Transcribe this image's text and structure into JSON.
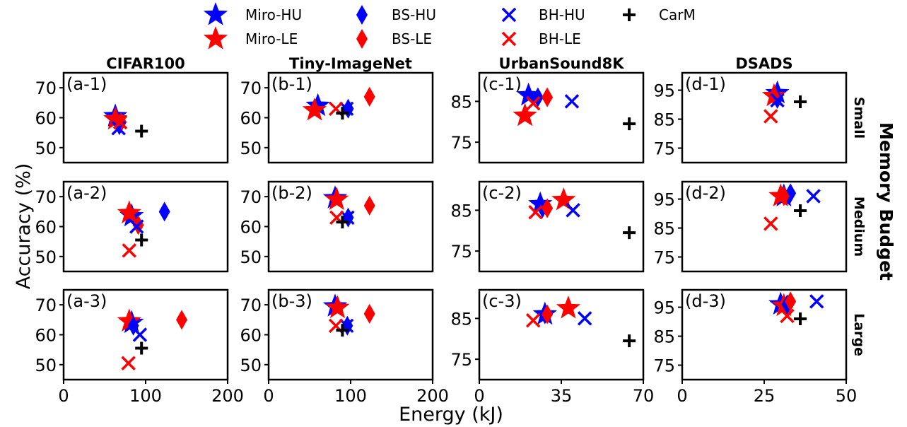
{
  "colors": {
    "HU": "#0000ff",
    "LE": "#ff0000",
    "CarM": "#000000"
  },
  "legend": [
    {
      "label": "Miro-HU",
      "marker": "star",
      "color": "#0000ff"
    },
    {
      "label": "Miro-LE",
      "marker": "star",
      "color": "#ff0000"
    },
    {
      "label": "BS-HU",
      "marker": "diamond",
      "color": "#0000ff"
    },
    {
      "label": "BS-LE",
      "marker": "diamond",
      "color": "#ff0000"
    },
    {
      "label": "BH-HU",
      "marker": "x",
      "color": "#0000ff"
    },
    {
      "label": "BH-LE",
      "marker": "x",
      "color": "#ff0000"
    },
    {
      "label": "CarM",
      "marker": "plus",
      "color": "#000000"
    }
  ],
  "column_titles": [
    "CIFAR100",
    "Tiny-ImageNet",
    "UrbanSound8K",
    "DSADS"
  ],
  "row_labels": [
    "Small",
    "Medium",
    "Large"
  ],
  "right_title": "Memory Budget",
  "xlabel": "Energy (kJ)",
  "ylabel": "Accuracy (%)",
  "chart_data": {
    "type": "scatter",
    "series_names": [
      "Miro-HU",
      "Miro-LE",
      "BS-HU",
      "BS-LE",
      "BH-HU",
      "BH-LE",
      "CarM"
    ],
    "columns": [
      {
        "dataset": "CIFAR100",
        "xlim": [
          0,
          200
        ],
        "xticks": [
          0,
          100,
          200
        ],
        "ylim": [
          45,
          75
        ],
        "yticks": [
          50,
          60,
          70
        ]
      },
      {
        "dataset": "Tiny-ImageNet",
        "xlim": [
          0,
          200
        ],
        "xticks": [
          0,
          100,
          200
        ],
        "ylim": [
          45,
          75
        ],
        "yticks": [
          50,
          60,
          70
        ]
      },
      {
        "dataset": "UrbanSound8K",
        "xlim": [
          0,
          70
        ],
        "xticks": [
          0,
          35,
          70
        ],
        "ylim": [
          70,
          92
        ],
        "yticks": [
          75,
          85
        ]
      },
      {
        "dataset": "DSADS",
        "xlim": [
          0,
          50
        ],
        "xticks": [
          0,
          25,
          50
        ],
        "ylim": [
          70,
          101
        ],
        "yticks": [
          75,
          85,
          95
        ]
      }
    ],
    "panels": [
      {
        "label": "(a-1)",
        "row": 0,
        "col": 0,
        "points": [
          {
            "series": "Miro-HU",
            "x": 63,
            "y": 60.5
          },
          {
            "series": "Miro-LE",
            "x": 63,
            "y": 59.5
          },
          {
            "series": "BS-HU",
            "x": 68,
            "y": 57.5
          },
          {
            "series": "BS-LE",
            "x": 70,
            "y": 58.5
          },
          {
            "series": "BH-HU",
            "x": 67,
            "y": 56.5
          },
          {
            "series": "BH-LE",
            "x": 69,
            "y": 58.5
          },
          {
            "series": "CarM",
            "x": 95,
            "y": 55.5
          }
        ]
      },
      {
        "label": "(b-1)",
        "row": 0,
        "col": 1,
        "points": [
          {
            "series": "Miro-HU",
            "x": 60,
            "y": 64
          },
          {
            "series": "Miro-LE",
            "x": 56,
            "y": 62.5
          },
          {
            "series": "BS-HU",
            "x": 97,
            "y": 63
          },
          {
            "series": "BS-LE",
            "x": 123,
            "y": 67
          },
          {
            "series": "BH-HU",
            "x": 95,
            "y": 63
          },
          {
            "series": "BH-LE",
            "x": 82,
            "y": 63
          },
          {
            "series": "CarM",
            "x": 90,
            "y": 61.5
          }
        ]
      },
      {
        "label": "(c-1)",
        "row": 0,
        "col": 2,
        "points": [
          {
            "series": "Miro-HU",
            "x": 21,
            "y": 86.5
          },
          {
            "series": "Miro-LE",
            "x": 19.5,
            "y": 81.5
          },
          {
            "series": "BS-HU",
            "x": 25,
            "y": 86
          },
          {
            "series": "BS-LE",
            "x": 29,
            "y": 86
          },
          {
            "series": "BH-HU",
            "x": 39.5,
            "y": 85
          },
          {
            "series": "BH-LE",
            "x": 23,
            "y": 84.5
          },
          {
            "series": "CarM",
            "x": 64,
            "y": 79.5
          }
        ]
      },
      {
        "label": "(d-1)",
        "row": 0,
        "col": 3,
        "points": [
          {
            "series": "Miro-HU",
            "x": 29,
            "y": 94
          },
          {
            "series": "Miro-LE",
            "x": 28,
            "y": 93
          },
          {
            "series": "BS-HU",
            "x": 29,
            "y": 92
          },
          {
            "series": "BS-LE",
            "x": 28,
            "y": 93
          },
          {
            "series": "BH-HU",
            "x": 29,
            "y": 91.5
          },
          {
            "series": "BH-LE",
            "x": 27,
            "y": 86
          },
          {
            "series": "CarM",
            "x": 36,
            "y": 91
          }
        ]
      },
      {
        "label": "(a-2)",
        "row": 1,
        "col": 0,
        "points": [
          {
            "series": "Miro-HU",
            "x": 83,
            "y": 63.5
          },
          {
            "series": "Miro-LE",
            "x": 80,
            "y": 64.5
          },
          {
            "series": "BS-HU",
            "x": 123,
            "y": 65
          },
          {
            "series": "BS-LE",
            "x": 91,
            "y": 60.5
          },
          {
            "series": "BH-HU",
            "x": 89,
            "y": 60
          },
          {
            "series": "BH-LE",
            "x": 80,
            "y": 52
          },
          {
            "series": "CarM",
            "x": 95,
            "y": 55.5
          }
        ]
      },
      {
        "label": "(b-2)",
        "row": 1,
        "col": 1,
        "points": [
          {
            "series": "Miro-HU",
            "x": 81,
            "y": 69.5
          },
          {
            "series": "Miro-LE",
            "x": 83,
            "y": 69
          },
          {
            "series": "BS-HU",
            "x": 97,
            "y": 63
          },
          {
            "series": "BS-LE",
            "x": 123,
            "y": 67
          },
          {
            "series": "BH-HU",
            "x": 96,
            "y": 63
          },
          {
            "series": "BH-LE",
            "x": 83,
            "y": 63
          },
          {
            "series": "CarM",
            "x": 90,
            "y": 61.5
          }
        ]
      },
      {
        "label": "(c-2)",
        "row": 1,
        "col": 2,
        "points": [
          {
            "series": "Miro-HU",
            "x": 26,
            "y": 86.5
          },
          {
            "series": "Miro-LE",
            "x": 36,
            "y": 87.5
          },
          {
            "series": "BS-HU",
            "x": 27,
            "y": 85.5
          },
          {
            "series": "BS-LE",
            "x": 29,
            "y": 85.5
          },
          {
            "series": "BH-HU",
            "x": 40,
            "y": 85
          },
          {
            "series": "BH-LE",
            "x": 24,
            "y": 84.5
          },
          {
            "series": "CarM",
            "x": 64,
            "y": 79.5
          }
        ]
      },
      {
        "label": "(d-2)",
        "row": 1,
        "col": 3,
        "points": [
          {
            "series": "Miro-HU",
            "x": 31,
            "y": 96
          },
          {
            "series": "Miro-LE",
            "x": 30,
            "y": 96
          },
          {
            "series": "BS-HU",
            "x": 33,
            "y": 97
          },
          {
            "series": "BS-LE",
            "x": 31,
            "y": 96
          },
          {
            "series": "BH-HU",
            "x": 40,
            "y": 96
          },
          {
            "series": "BH-LE",
            "x": 27,
            "y": 86.5
          },
          {
            "series": "CarM",
            "x": 36,
            "y": 91
          }
        ]
      },
      {
        "label": "(a-3)",
        "row": 2,
        "col": 0,
        "points": [
          {
            "series": "Miro-HU",
            "x": 83,
            "y": 64
          },
          {
            "series": "Miro-LE",
            "x": 80,
            "y": 64.5
          },
          {
            "series": "BS-HU",
            "x": 85,
            "y": 63
          },
          {
            "series": "BS-LE",
            "x": 144,
            "y": 65
          },
          {
            "series": "BH-HU",
            "x": 93,
            "y": 60
          },
          {
            "series": "BH-LE",
            "x": 79,
            "y": 50.5
          },
          {
            "series": "CarM",
            "x": 95,
            "y": 55.5
          }
        ]
      },
      {
        "label": "(b-3)",
        "row": 2,
        "col": 1,
        "points": [
          {
            "series": "Miro-HU",
            "x": 81,
            "y": 69.5
          },
          {
            "series": "Miro-LE",
            "x": 84,
            "y": 69
          },
          {
            "series": "BS-HU",
            "x": 96,
            "y": 63
          },
          {
            "series": "BS-LE",
            "x": 123,
            "y": 67
          },
          {
            "series": "BH-HU",
            "x": 95,
            "y": 63
          },
          {
            "series": "BH-LE",
            "x": 82,
            "y": 63
          },
          {
            "series": "CarM",
            "x": 90,
            "y": 61.5
          }
        ]
      },
      {
        "label": "(c-3)",
        "row": 2,
        "col": 2,
        "points": [
          {
            "series": "Miro-HU",
            "x": 28,
            "y": 86
          },
          {
            "series": "Miro-LE",
            "x": 38,
            "y": 87.5
          },
          {
            "series": "BS-HU",
            "x": 28,
            "y": 86
          },
          {
            "series": "BS-LE",
            "x": 29,
            "y": 86
          },
          {
            "series": "BH-HU",
            "x": 45,
            "y": 85
          },
          {
            "series": "BH-LE",
            "x": 23,
            "y": 84.5
          },
          {
            "series": "CarM",
            "x": 64,
            "y": 79.5
          }
        ]
      },
      {
        "label": "(d-3)",
        "row": 2,
        "col": 3,
        "points": [
          {
            "series": "Miro-HU",
            "x": 30,
            "y": 96
          },
          {
            "series": "Miro-LE",
            "x": 31,
            "y": 95.5
          },
          {
            "series": "BS-HU",
            "x": 32,
            "y": 96
          },
          {
            "series": "BS-LE",
            "x": 33,
            "y": 97
          },
          {
            "series": "BH-HU",
            "x": 41,
            "y": 97
          },
          {
            "series": "BH-LE",
            "x": 32,
            "y": 92
          },
          {
            "series": "CarM",
            "x": 36,
            "y": 91
          }
        ]
      }
    ]
  }
}
